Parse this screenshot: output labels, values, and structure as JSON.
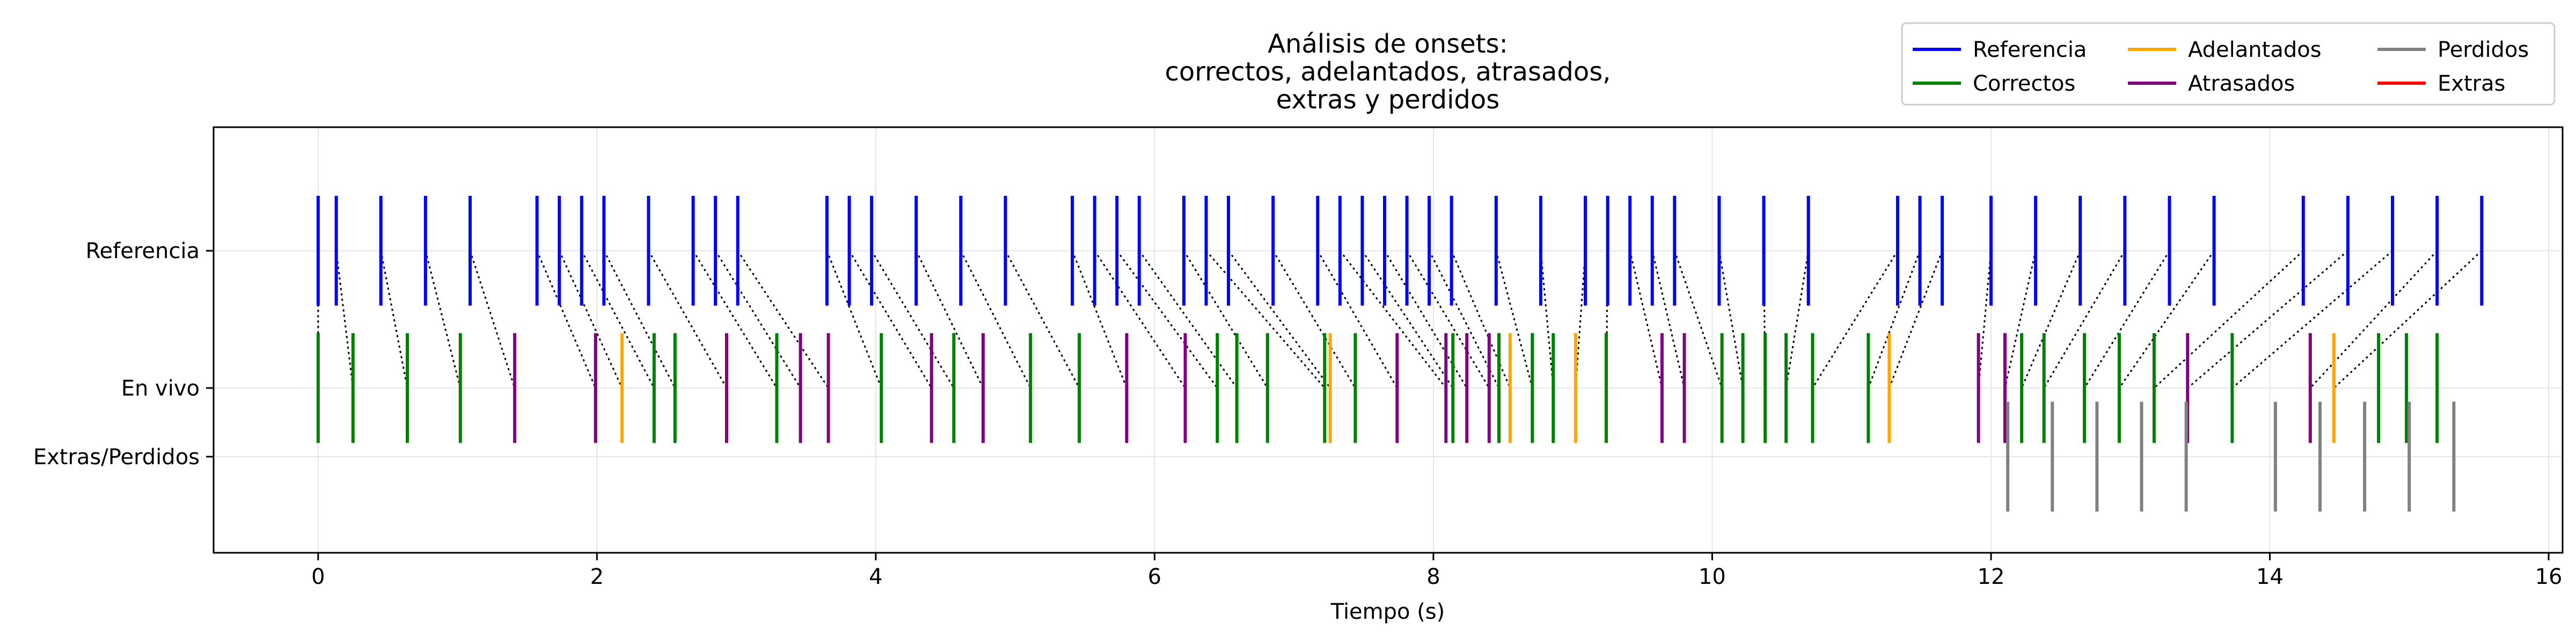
{
  "chart_data": {
    "type": "event-plot",
    "title_lines": [
      "Análisis de onsets:",
      "correctos, adelantados, atrasados,",
      "extras y perdidos"
    ],
    "xlabel": "Tiempo (s)",
    "xlim": [
      -0.75,
      16.1
    ],
    "xticks": [
      0,
      2,
      4,
      6,
      8,
      10,
      12,
      14,
      16
    ],
    "ylim": [
      -2.2,
      0.9
    ],
    "grid": true,
    "legend_position": "top-right",
    "rows": [
      {
        "label": "Referencia",
        "y": 0
      },
      {
        "label": "En vivo",
        "y": -1
      },
      {
        "label": "Extras/Perdidos",
        "y": -1.5
      }
    ],
    "legend": [
      {
        "name": "Referencia",
        "color": "#0000ff"
      },
      {
        "name": "Correctos",
        "color": "#008000"
      },
      {
        "name": "Adelantados",
        "color": "#ffa500"
      },
      {
        "name": "Atrasados",
        "color": "#800080"
      },
      {
        "name": "Perdidos",
        "color": "#808080"
      },
      {
        "name": "Extras",
        "color": "#ff0000"
      }
    ],
    "reference_onsets": [
      0.0,
      0.13,
      0.45,
      0.77,
      1.09,
      1.57,
      1.73,
      1.89,
      2.05,
      2.37,
      2.69,
      2.85,
      3.01,
      3.65,
      3.81,
      3.97,
      4.29,
      4.61,
      4.93,
      5.41,
      5.57,
      5.73,
      5.89,
      6.21,
      6.37,
      6.53,
      6.85,
      7.17,
      7.33,
      7.49,
      7.65,
      7.81,
      7.97,
      8.13,
      8.45,
      8.77,
      9.09,
      9.25,
      9.41,
      9.57,
      9.73,
      10.05,
      10.37,
      10.69,
      11.33,
      11.49,
      11.65,
      12.0,
      12.32,
      12.64,
      12.96,
      13.28,
      13.6,
      14.24,
      14.56,
      14.88,
      15.2,
      15.52
    ],
    "live_onsets": {
      "correctos": [
        0.0,
        0.25,
        0.64,
        1.02,
        2.41,
        2.56,
        3.29,
        4.04,
        4.56,
        5.11,
        5.46,
        6.45,
        6.59,
        6.81,
        7.22,
        7.44,
        8.14,
        8.47,
        8.71,
        8.86,
        9.24,
        10.07,
        10.22,
        10.38,
        10.53,
        10.72,
        11.12,
        12.22,
        12.38,
        12.67,
        12.92,
        13.17,
        13.73,
        14.78,
        14.98,
        15.2
      ],
      "adelantados": [
        2.18,
        7.26,
        8.55,
        9.02,
        11.27,
        14.46
      ],
      "atrasados": [
        1.41,
        1.99,
        2.93,
        3.46,
        3.66,
        4.4,
        4.77,
        5.8,
        6.22,
        7.74,
        8.09,
        8.24,
        8.4,
        9.64,
        9.8,
        11.91,
        12.1,
        13.41,
        14.29
      ]
    },
    "missed_onsets": [
      12.12,
      12.44,
      12.76,
      13.08,
      13.4,
      14.04,
      14.36,
      14.68,
      15.0,
      15.32
    ],
    "extra_onsets": []
  }
}
